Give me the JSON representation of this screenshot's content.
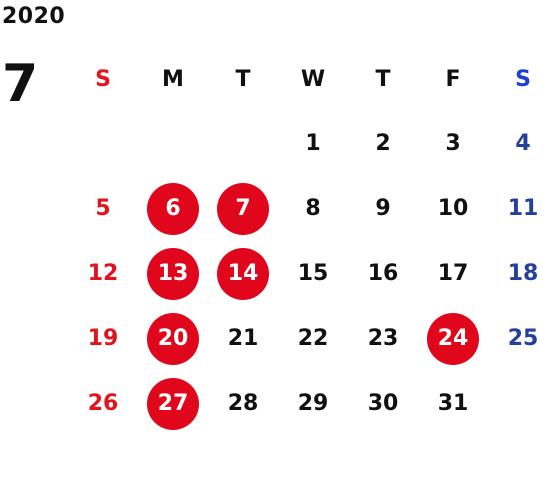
{
  "year": "2020",
  "month": "7",
  "weekdays": [
    "S",
    "M",
    "T",
    "W",
    "T",
    "F",
    "S"
  ],
  "weeks": [
    [
      "",
      "",
      "",
      "1",
      "2",
      "3",
      "4"
    ],
    [
      "5",
      "6",
      "7",
      "8",
      "9",
      "10",
      "11"
    ],
    [
      "12",
      "13",
      "14",
      "15",
      "16",
      "17",
      "18"
    ],
    [
      "19",
      "20",
      "21",
      "22",
      "23",
      "24",
      "25"
    ],
    [
      "26",
      "27",
      "28",
      "29",
      "30",
      "31",
      ""
    ]
  ],
  "highlighted_days": [
    "6",
    "7",
    "13",
    "14",
    "20",
    "24",
    "27"
  ],
  "colors": {
    "sunday": "#e3141e",
    "saturday_header": "#1f3fd0",
    "saturday": "#23409a",
    "highlight": "#e0061c",
    "text": "#111111"
  }
}
